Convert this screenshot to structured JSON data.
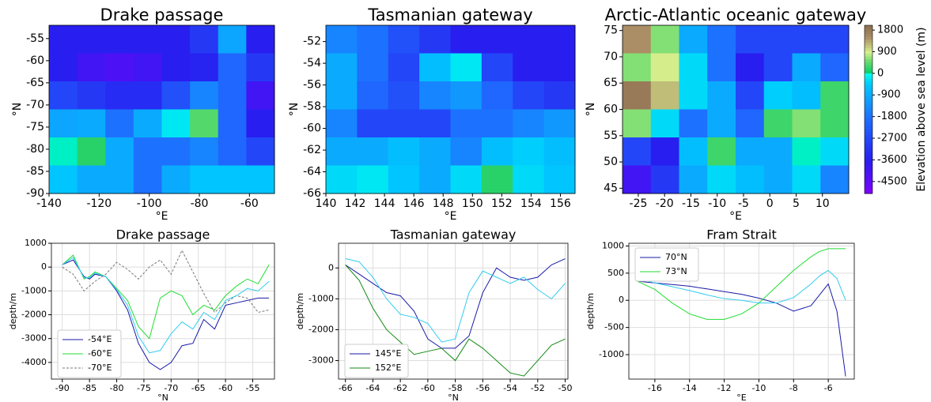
{
  "chart_data": [
    {
      "type": "contour",
      "title": "Drake passage",
      "xlabel": "°E",
      "ylabel": "°N",
      "xlim": [
        -140,
        -50
      ],
      "ylim": [
        -90,
        -52
      ],
      "xticks": [
        -140,
        -120,
        -100,
        -80,
        -60
      ],
      "yticks": [
        -55,
        -60,
        -65,
        -70,
        -75,
        -80,
        -85,
        -90
      ],
      "z": [
        [
          -3600,
          -3600,
          -3600,
          -3600,
          -3600,
          -3000,
          -1000,
          -3600
        ],
        [
          -3600,
          -4000,
          -4200,
          -4000,
          -3600,
          -3500,
          -2000,
          -3000
        ],
        [
          -2700,
          -3000,
          -3300,
          -3300,
          -2500,
          -1500,
          -2000,
          -4000
        ],
        [
          -1000,
          -900,
          -1800,
          -900,
          -200,
          400,
          -2000,
          -3600
        ],
        [
          0,
          200,
          -900,
          -1800,
          -1800,
          -1500,
          -2000,
          -2700
        ],
        [
          -500,
          -900,
          -900,
          -1800,
          -900,
          -500,
          -500,
          -500
        ]
      ]
    },
    {
      "type": "contour",
      "title": "Tasmanian gateway",
      "xlabel": "°E",
      "ylabel": "°N",
      "xlim": [
        140,
        157
      ],
      "ylim": [
        -66,
        -50.5
      ],
      "xticks": [
        140,
        142,
        144,
        146,
        148,
        150,
        152,
        154,
        156
      ],
      "yticks": [
        -52,
        -54,
        -56,
        -58,
        -60,
        -62,
        -64,
        -66
      ],
      "z": [
        [
          -1500,
          -1800,
          -2500,
          -3000,
          -3600,
          -3600,
          -3600,
          -3600
        ],
        [
          -900,
          -1800,
          -2700,
          -600,
          -200,
          -2700,
          -3600,
          -3600
        ],
        [
          -900,
          -2000,
          -2500,
          -1500,
          -1200,
          -2000,
          -2700,
          -3000
        ],
        [
          -1500,
          -2700,
          -2700,
          -2700,
          -1800,
          -1800,
          -1500,
          -1200
        ],
        [
          -900,
          -900,
          -600,
          -900,
          -1500,
          -600,
          -400,
          -600
        ],
        [
          -300,
          -200,
          -500,
          -900,
          -300,
          200,
          -300,
          -500
        ]
      ]
    },
    {
      "type": "contour",
      "title": "Arctic-Atlantic oceanic gateway",
      "xlabel": "°E",
      "ylabel": "°N",
      "xlim": [
        -28,
        15
      ],
      "ylim": [
        44,
        76
      ],
      "xticks": [
        -25,
        -20,
        -15,
        -10,
        -5,
        0,
        5,
        10
      ],
      "yticks": [
        45,
        50,
        55,
        60,
        65,
        70,
        75
      ],
      "z": [
        [
          1500,
          600,
          -900,
          -1800,
          -2700,
          -2700,
          -2700,
          -2700
        ],
        [
          600,
          900,
          -300,
          -1800,
          -3600,
          -2700,
          -900,
          -2000
        ],
        [
          1800,
          1200,
          -300,
          -900,
          -2700,
          -400,
          -600,
          300
        ],
        [
          600,
          -300,
          -1800,
          -900,
          -2000,
          300,
          600,
          300
        ],
        [
          -2700,
          -3600,
          -600,
          300,
          -900,
          -900,
          0,
          -300
        ],
        [
          -4000,
          -3000,
          -900,
          -300,
          -600,
          -900,
          -300,
          -1500
        ]
      ],
      "colorbar": {
        "label": "Elevation above sea level (m)",
        "lim": [
          -5000,
          2000
        ],
        "ticks": [
          -4500,
          -3600,
          -2700,
          -1800,
          -900,
          0,
          900,
          1800
        ]
      }
    },
    {
      "type": "line",
      "title": "Drake passage",
      "xlabel": "°N",
      "ylabel": "depth/m",
      "xlim": [
        -92,
        -51
      ],
      "ylim": [
        -4700,
        1000
      ],
      "xticks": [
        -90,
        -85,
        -80,
        -75,
        -70,
        -65,
        -60,
        -55
      ],
      "yticks": [
        1000,
        0,
        -1000,
        -2000,
        -3000,
        -4000
      ],
      "grid": true,
      "legend": "lower left",
      "x": [
        -90,
        -88,
        -86,
        -85,
        -84,
        -82,
        -80,
        -78,
        -76,
        -74,
        -72,
        -70,
        -68,
        -66,
        -64,
        -62,
        -60,
        -58,
        -56,
        -54,
        -52
      ],
      "series": [
        {
          "name": "-54°E",
          "color": "#1a1aa8",
          "values": [
            100,
            300,
            -400,
            -500,
            -300,
            -400,
            -1000,
            -1800,
            -3200,
            -4000,
            -4300,
            -4000,
            -3300,
            -3200,
            -2200,
            -2600,
            -1600,
            -1500,
            -1400,
            -1300,
            -1300
          ]
        },
        {
          "name": "-60°E",
          "color": "#22dd33",
          "values": [
            100,
            500,
            -500,
            -400,
            -200,
            -400,
            -900,
            -1400,
            -2500,
            -3000,
            -1300,
            -1000,
            -1200,
            -2000,
            -1600,
            -1800,
            -1200,
            -800,
            -500,
            -700,
            100
          ]
        },
        {
          "name": "-70°E",
          "color": "#777777",
          "dash": true,
          "values": [
            0,
            -300,
            -1000,
            -800,
            -600,
            -300,
            200,
            -100,
            -500,
            0,
            300,
            -300,
            700,
            -200,
            -1100,
            -1900,
            -1500,
            -1200,
            -1300,
            -1900,
            -1800
          ]
        },
        {
          "color": "#33ccee",
          "values": [
            100,
            400,
            -450,
            -450,
            -250,
            -400,
            -950,
            -1600,
            -2900,
            -3600,
            -3500,
            -2800,
            -2300,
            -2600,
            -1900,
            -2200,
            -1400,
            -1200,
            -900,
            -1000,
            -600
          ]
        }
      ]
    },
    {
      "type": "line",
      "title": "Tasmanian gateway",
      "xlabel": "°N",
      "ylabel": "depth/m",
      "xlim": [
        -66.5,
        -49.8
      ],
      "ylim": [
        -3600,
        800
      ],
      "xticks": [
        -66,
        -64,
        -62,
        -60,
        -58,
        -56,
        -54,
        -52,
        -50
      ],
      "yticks": [
        0,
        -1000,
        -2000,
        -3000
      ],
      "grid": true,
      "legend": "lower left",
      "x": [
        -66,
        -65,
        -64,
        -63,
        -62,
        -61,
        -60,
        -59,
        -58,
        -57,
        -56,
        -55,
        -54,
        -53,
        -52,
        -51,
        -50
      ],
      "series": [
        {
          "name": "145°E",
          "color": "#1a1aa8",
          "values": [
            100,
            -200,
            -500,
            -800,
            -900,
            -1400,
            -2300,
            -2600,
            -2600,
            -2200,
            -800,
            0,
            -300,
            -400,
            -300,
            100,
            300
          ]
        },
        {
          "name": "152°E",
          "color": "#138a13",
          "values": [
            100,
            -400,
            -1300,
            -2000,
            -2400,
            -2800,
            -2700,
            -2600,
            -3000,
            -2300,
            -2600,
            -3000,
            -3400,
            -3500,
            -3000,
            -2500,
            -2300
          ]
        },
        {
          "color": "#33ccee",
          "values": [
            300,
            200,
            -300,
            -1000,
            -1500,
            -1600,
            -1800,
            -2400,
            -2300,
            -800,
            -100,
            -300,
            -500,
            -300,
            -700,
            -1000,
            -500
          ]
        }
      ]
    },
    {
      "type": "line",
      "title": "Fram Strait",
      "xlabel": "°E",
      "ylabel": "depth/m",
      "xlim": [
        -17.5,
        -4.5
      ],
      "ylim": [
        -1450,
        1050
      ],
      "xticks": [
        -16,
        -14,
        -12,
        -10,
        -8,
        -6
      ],
      "yticks": [
        -1000,
        -500,
        0,
        500,
        1000
      ],
      "grid": true,
      "legend": "upper left",
      "x": [
        -17,
        -16,
        -15,
        -14,
        -13,
        -12,
        -11,
        -10,
        -9,
        -8,
        -7,
        -6.5,
        -6,
        -5.5,
        -5
      ],
      "series": [
        {
          "name": "70°N",
          "color": "#1a1aa8",
          "values": [
            350,
            320,
            290,
            260,
            210,
            160,
            110,
            40,
            -50,
            -200,
            -100,
            100,
            300,
            -200,
            -1400
          ]
        },
        {
          "name": "73°N",
          "color": "#22dd33",
          "values": [
            350,
            200,
            -50,
            -250,
            -350,
            -350,
            -250,
            -50,
            250,
            550,
            800,
            900,
            950,
            950,
            950
          ]
        },
        {
          "color": "#33ccee",
          "values": [
            400,
            320,
            250,
            180,
            100,
            30,
            0,
            -50,
            -50,
            50,
            300,
            450,
            550,
            400,
            0
          ]
        }
      ]
    }
  ]
}
